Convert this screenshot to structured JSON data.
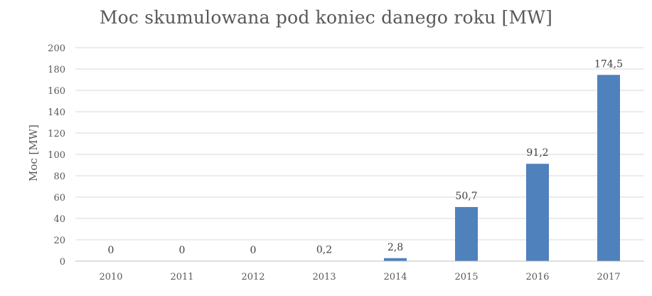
{
  "chart_data": {
    "type": "bar",
    "title": "Moc skumulowana pod koniec danego roku [MW]",
    "xlabel": "",
    "ylabel": "Moc [MW]",
    "categories": [
      "2010",
      "2011",
      "2012",
      "2013",
      "2014",
      "2015",
      "2016",
      "2017"
    ],
    "values": [
      0,
      0,
      0,
      0.2,
      2.8,
      50.7,
      91.2,
      174.5
    ],
    "data_labels": [
      "0",
      "0",
      "0",
      "0,2",
      "2,8",
      "50,7",
      "91,2",
      "174,5"
    ],
    "ylim": [
      0,
      200
    ],
    "y_ticks": [
      0,
      20,
      40,
      60,
      80,
      100,
      120,
      140,
      160,
      180,
      200
    ],
    "grid": true,
    "legend": "none",
    "colors": {
      "bar": "#4f81bd",
      "grid": "#d9d9d9",
      "axis": "#bfbfbf",
      "text": "#595959"
    }
  }
}
